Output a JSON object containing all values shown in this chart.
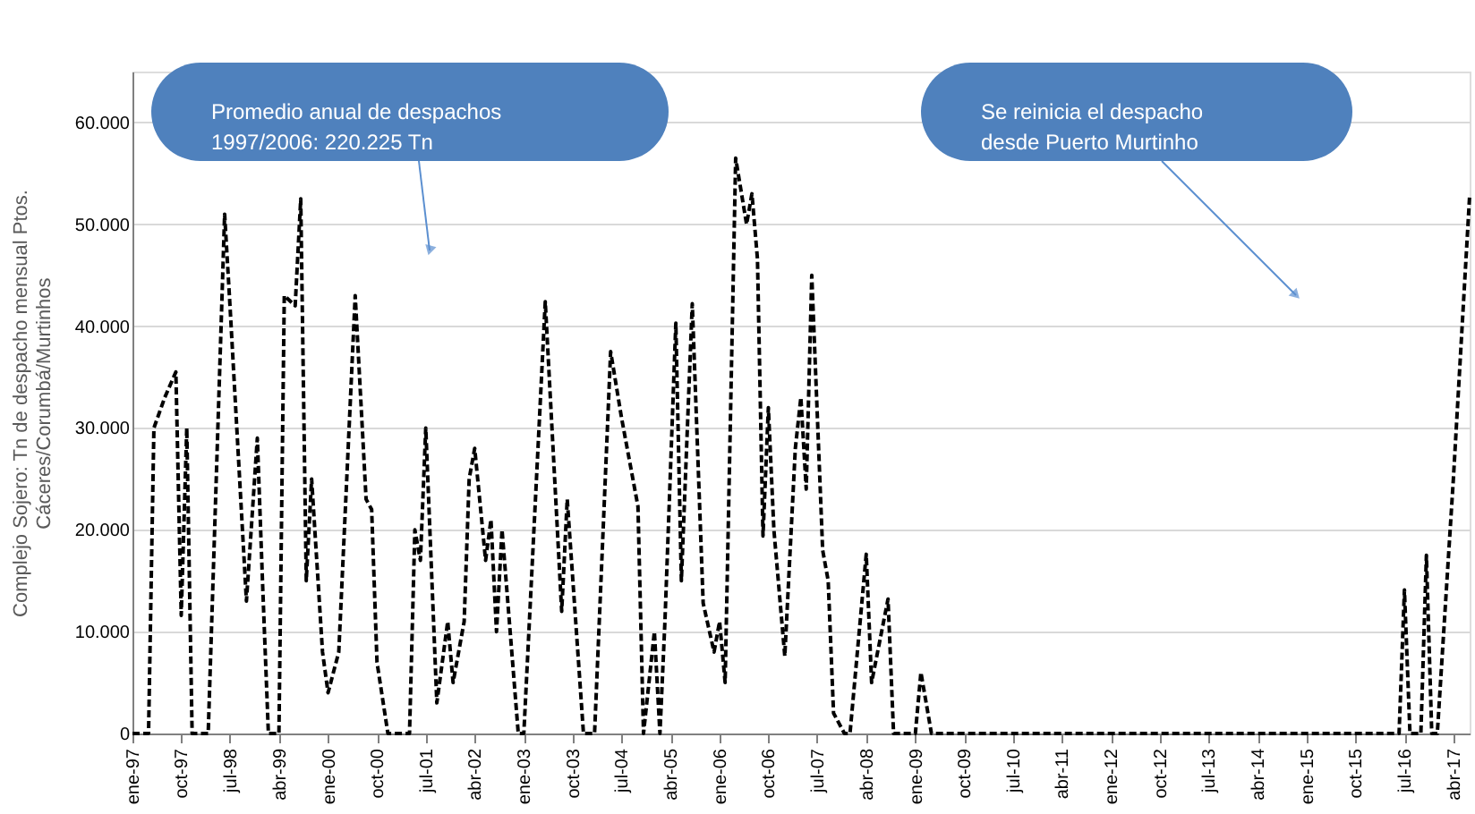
{
  "chart_data": {
    "type": "line",
    "ylabel": "Complejo Sojero: Tn de despacho mensual Ptos.\nCáceres/Corumbá/Murtinhos",
    "annotations": [
      "Promedio anual de despachos\n1997/2006:  220.225 Tn",
      "Se reinicia el despacho\ndesde Puerto Murtinho"
    ],
    "series": [
      {
        "color": "#000000",
        "x": [
          "1997-01",
          "1997-04",
          "1997-05",
          "1997-07",
          "1997-09",
          "1997-10",
          "1997-11",
          "1997-12",
          "1998-03",
          "1998-06",
          "1998-07",
          "1998-10",
          "1998-12",
          "1999-01",
          "1999-02",
          "1999-04",
          "1999-05",
          "1999-07",
          "1999-08",
          "1999-09",
          "1999-10",
          "1999-12",
          "2000-01",
          "2000-03",
          "2000-06",
          "2000-08",
          "2000-09",
          "2000-10",
          "2000-12",
          "2001-04",
          "2001-05",
          "2001-06",
          "2001-07",
          "2001-09",
          "2001-11",
          "2001-12",
          "2002-02",
          "2002-03",
          "2002-04",
          "2002-06",
          "2002-07",
          "2002-08",
          "2002-09",
          "2002-12",
          "2003-01",
          "2003-05",
          "2003-08",
          "2003-09",
          "2003-12",
          "2004-02",
          "2004-05",
          "2004-07",
          "2004-10",
          "2004-11",
          "2005-01",
          "2005-02",
          "2005-03",
          "2005-05",
          "2005-06",
          "2005-08",
          "2005-10",
          "2005-12",
          "2006-01",
          "2006-02",
          "2006-04",
          "2006-06",
          "2006-07",
          "2006-08",
          "2006-09",
          "2006-10",
          "2006-11",
          "2007-01",
          "2007-03",
          "2007-04",
          "2007-05",
          "2007-06",
          "2007-08",
          "2007-09",
          "2007-10",
          "2007-12",
          "2008-01",
          "2008-02",
          "2008-04",
          "2008-05",
          "2008-08",
          "2008-09",
          "2009-01",
          "2009-02",
          "2009-04",
          "2016-06",
          "2016-07",
          "2016-08",
          "2016-10",
          "2016-11",
          "2016-12",
          "2017-01",
          "2017-04",
          "2017-07"
        ],
        "values": [
          0,
          0,
          30000,
          33000,
          35500,
          11600,
          30000,
          0,
          0,
          51000,
          42000,
          13000,
          29000,
          14000,
          0,
          0,
          43000,
          42000,
          52500,
          15000,
          25000,
          8000,
          4000,
          8000,
          43000,
          23000,
          22000,
          7000,
          0,
          0,
          20000,
          17000,
          30000,
          3000,
          11000,
          5000,
          11000,
          25000,
          28000,
          17000,
          21000,
          10000,
          20000,
          0,
          0,
          42400,
          12000,
          23000,
          0,
          0,
          37500,
          31000,
          22300,
          0,
          10000,
          0,
          11000,
          40300,
          15000,
          42200,
          12800,
          8000,
          11000,
          5000,
          56500,
          50000,
          53000,
          46600,
          19400,
          32000,
          20000,
          7600,
          28000,
          33000,
          24000,
          45000,
          18000,
          15000,
          2000,
          0,
          0,
          6000,
          17600,
          5000,
          13200,
          0,
          0,
          6000,
          0,
          0,
          14100,
          0,
          0,
          17500,
          0,
          0,
          25000,
          52800
        ]
      }
    ],
    "line_style": "dashed",
    "marker": "none",
    "grid": "y",
    "xlim": [
      "1997-01",
      "2017-07"
    ],
    "xticks": [
      {
        "value": "1997-01",
        "label": "ene-97"
      },
      {
        "value": "1997-10",
        "label": "oct-97"
      },
      {
        "value": "1998-07",
        "label": "jul-98"
      },
      {
        "value": "1999-04",
        "label": "abr-99"
      },
      {
        "value": "2000-01",
        "label": "ene-00"
      },
      {
        "value": "2000-10",
        "label": "oct-00"
      },
      {
        "value": "2001-07",
        "label": "jul-01"
      },
      {
        "value": "2002-04",
        "label": "abr-02"
      },
      {
        "value": "2003-01",
        "label": "ene-03"
      },
      {
        "value": "2003-10",
        "label": "oct-03"
      },
      {
        "value": "2004-07",
        "label": "jul-04"
      },
      {
        "value": "2005-04",
        "label": "abr-05"
      },
      {
        "value": "2006-01",
        "label": "ene-06"
      },
      {
        "value": "2006-10",
        "label": "oct-06"
      },
      {
        "value": "2007-07",
        "label": "jul-07"
      },
      {
        "value": "2008-04",
        "label": "abr-08"
      },
      {
        "value": "2009-01",
        "label": "ene-09"
      },
      {
        "value": "2009-10",
        "label": "oct-09"
      },
      {
        "value": "2010-07",
        "label": "jul-10"
      },
      {
        "value": "2011-04",
        "label": "abr-11"
      },
      {
        "value": "2012-01",
        "label": "ene-12"
      },
      {
        "value": "2012-10",
        "label": "oct-12"
      },
      {
        "value": "2013-07",
        "label": "jul-13"
      },
      {
        "value": "2014-04",
        "label": "abr-14"
      },
      {
        "value": "2015-01",
        "label": "ene-15"
      },
      {
        "value": "2015-10",
        "label": "oct-15"
      },
      {
        "value": "2016-07",
        "label": "jul-16"
      },
      {
        "value": "2017-04",
        "label": "abr-17"
      }
    ],
    "ylim": [
      0,
      65000
    ],
    "yticks": [
      0,
      {
        "value": 10000,
        "label": "10.000"
      },
      {
        "value": 20000,
        "label": "20.000"
      },
      {
        "value": 30000,
        "label": "30.000"
      },
      {
        "value": 40000,
        "label": "40.000"
      },
      {
        "value": 50000,
        "label": "50.000"
      },
      {
        "value": 60000,
        "label": "60.000"
      }
    ]
  }
}
